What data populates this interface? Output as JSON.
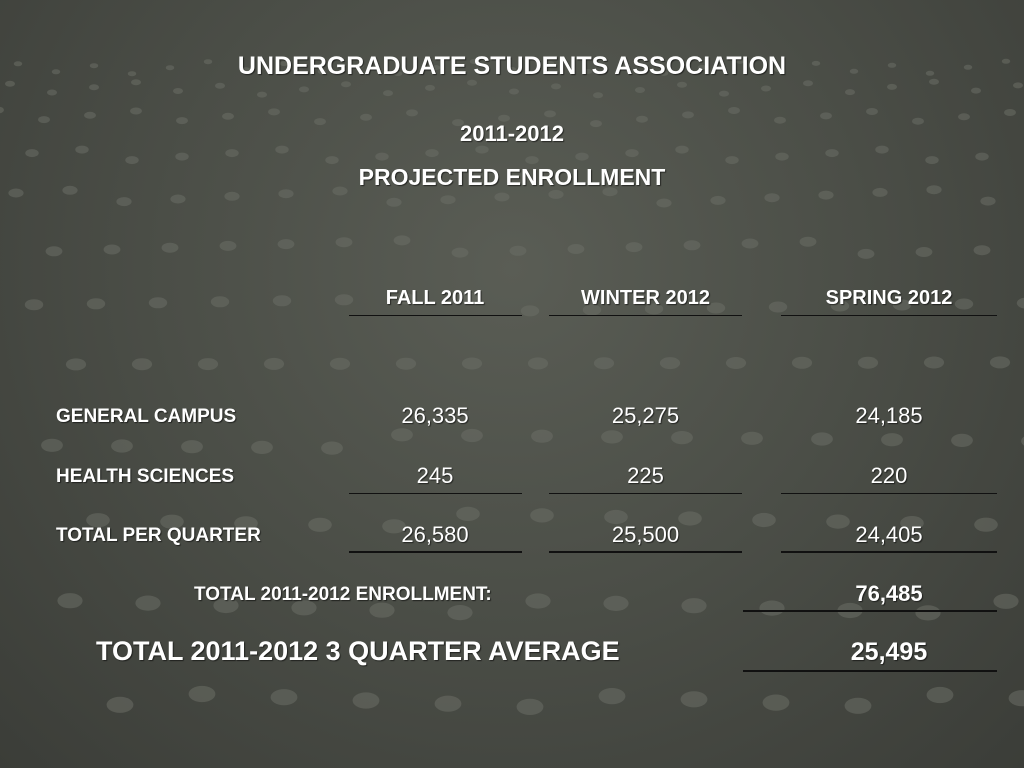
{
  "title": "UNDERGRADUATE STUDENTS ASSOCIATION",
  "year": "2011-2012",
  "subtitle": "PROJECTED ENROLLMENT",
  "columns": [
    "FALL 2011",
    "WINTER 2012",
    "SPRING 2012"
  ],
  "rows": [
    {
      "label": "GENERAL CAMPUS",
      "values": [
        "26,335",
        "25,275",
        "24,185"
      ]
    },
    {
      "label": "HEALTH SCIENCES",
      "values": [
        "245",
        "225",
        "220"
      ]
    },
    {
      "label": "TOTAL PER QUARTER",
      "values": [
        "26,580",
        "25,500",
        "24,405"
      ]
    }
  ],
  "total_enrollment": {
    "label": "TOTAL 2011-2012 ENROLLMENT:",
    "value": "76,485"
  },
  "average": {
    "label": "TOTAL 2011-2012 3 QUARTER AVERAGE",
    "value": "25,495"
  }
}
